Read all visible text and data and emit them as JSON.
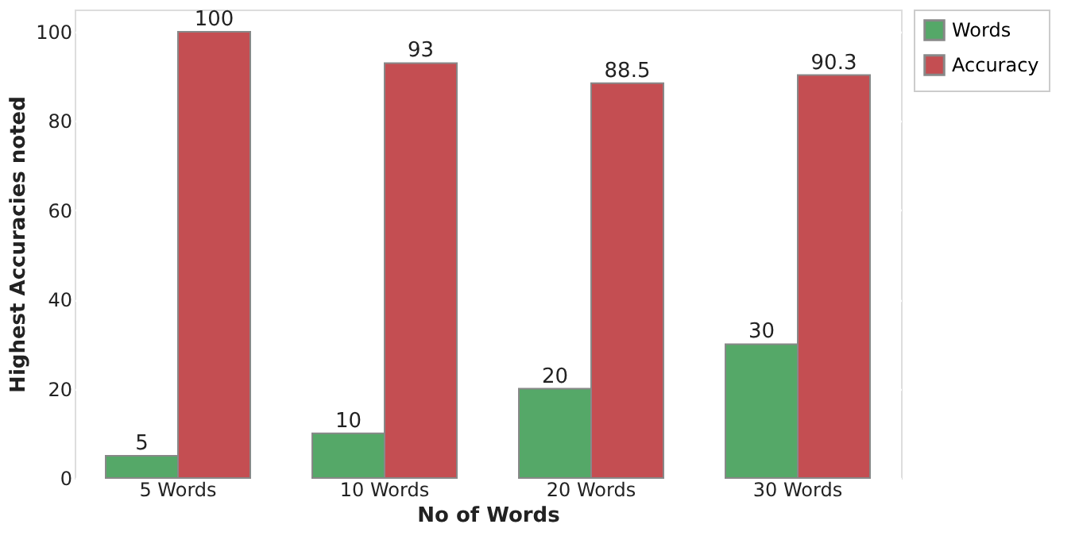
{
  "chart_data": {
    "type": "bar",
    "xlabel": "No of Words",
    "ylabel": "Highest Accuracies noted",
    "categories": [
      "5 Words",
      "10 Words",
      "20 Words",
      "30 Words"
    ],
    "series": [
      {
        "name": "Words",
        "color": "#55a868",
        "values": [
          5,
          10,
          20,
          30
        ]
      },
      {
        "name": "Accuracy",
        "color": "#c44e52",
        "values": [
          100,
          93,
          88.5,
          90.3
        ]
      }
    ],
    "ylim": [
      0,
      105
    ],
    "yticks": [
      0,
      20,
      40,
      60,
      80,
      100
    ],
    "grid": "y",
    "legend": "top right",
    "data_labels": true
  }
}
